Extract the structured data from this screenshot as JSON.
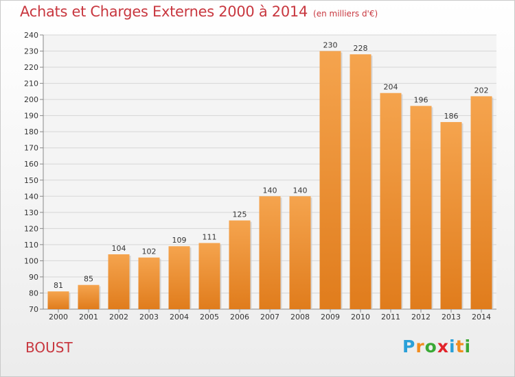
{
  "header": {
    "title": "Achats et Charges Externes 2000 à 2014",
    "subtitle": "(en milliers d'€)"
  },
  "commune": "BOUST",
  "logo": {
    "text": "Proxiti",
    "letters": [
      {
        "ch": "P",
        "color": "#2aa0d8"
      },
      {
        "ch": "r",
        "color": "#f28c1e"
      },
      {
        "ch": "o",
        "color": "#3aa935"
      },
      {
        "ch": "x",
        "color": "#e2232a"
      },
      {
        "ch": "i",
        "color": "#2aa0d8"
      },
      {
        "ch": "t",
        "color": "#f28c1e"
      },
      {
        "ch": "i",
        "color": "#3aa935"
      }
    ]
  },
  "chart_data": {
    "type": "bar",
    "title": "Achats et Charges Externes 2000 à 2014",
    "subtitle": "(en milliers d'€)",
    "categories": [
      "2000",
      "2001",
      "2002",
      "2003",
      "2004",
      "2005",
      "2006",
      "2007",
      "2008",
      "2009",
      "2010",
      "2011",
      "2012",
      "2013",
      "2014"
    ],
    "values": [
      81,
      85,
      104,
      102,
      109,
      111,
      125,
      140,
      140,
      230,
      228,
      204,
      196,
      186,
      202
    ],
    "ylim": [
      70,
      240
    ],
    "yticks": [
      70,
      80,
      90,
      100,
      110,
      120,
      130,
      140,
      150,
      160,
      170,
      180,
      190,
      200,
      210,
      220,
      230,
      240
    ],
    "grid": true,
    "bar_color_top": "#f5a44e",
    "bar_color_bottom": "#e07c1c"
  }
}
